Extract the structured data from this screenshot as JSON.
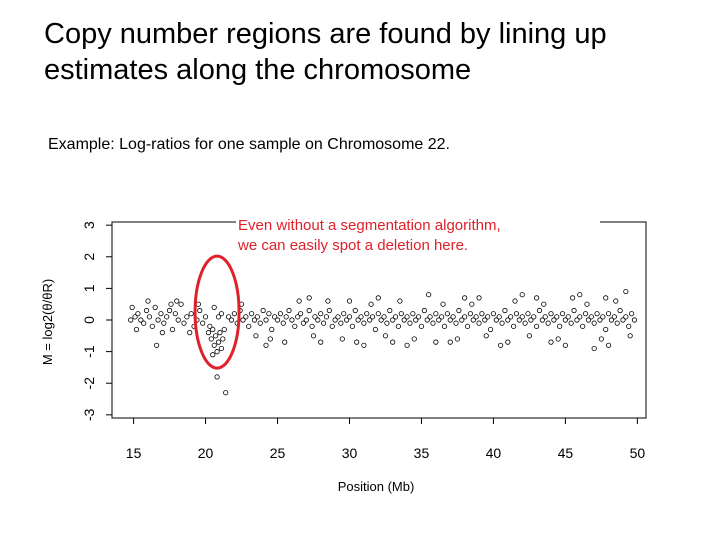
{
  "slide": {
    "title": "Copy number regions are found by lining up estimates along the chromosome",
    "subtitle": "Example: Log-ratios for one sample on Chromosome 22."
  },
  "annotation": {
    "text_line1": "Even without a segmentation algorithm,",
    "text_line2": "we can easily spot a deletion here.",
    "color": "#e0202a"
  },
  "chart_data": {
    "type": "scatter",
    "title": "",
    "xlabel": "Position (Mb)",
    "ylabel": "M = log2(θ/θR)",
    "xlim": [
      13.5,
      50.6
    ],
    "ylim": [
      -3.1,
      3.1
    ],
    "xticks": [
      15,
      20,
      25,
      30,
      35,
      40,
      45,
      50
    ],
    "yticks": [
      -3,
      -2,
      -1,
      0,
      1,
      2,
      3
    ],
    "grid": false,
    "marker": "open-circle",
    "point_color": "#000000",
    "highlight": {
      "shape": "ellipse",
      "color": "#e0202a",
      "x_center": 20.8,
      "y_center": 0.25
    },
    "points": [
      [
        14.8,
        0.0
      ],
      [
        15.1,
        0.1
      ],
      [
        15.3,
        0.2
      ],
      [
        15.5,
        0.0
      ],
      [
        15.7,
        -0.1
      ],
      [
        15.9,
        0.3
      ],
      [
        16.1,
        0.1
      ],
      [
        16.3,
        -0.2
      ],
      [
        16.5,
        0.4
      ],
      [
        16.7,
        0.0
      ],
      [
        16.9,
        0.2
      ],
      [
        17.1,
        -0.1
      ],
      [
        17.3,
        0.1
      ],
      [
        17.5,
        0.3
      ],
      [
        17.7,
        -0.3
      ],
      [
        17.9,
        0.2
      ],
      [
        18.1,
        0.0
      ],
      [
        18.3,
        0.5
      ],
      [
        18.5,
        -0.1
      ],
      [
        18.7,
        0.1
      ],
      [
        19.0,
        0.2
      ],
      [
        19.2,
        -0.2
      ],
      [
        19.4,
        0.0
      ],
      [
        19.6,
        0.3
      ],
      [
        19.8,
        -0.1
      ],
      [
        20.0,
        0.1
      ],
      [
        15.2,
        -0.3
      ],
      [
        16.0,
        0.6
      ],
      [
        17.0,
        -0.4
      ],
      [
        18.0,
        0.6
      ],
      [
        18.9,
        -0.4
      ],
      [
        19.5,
        0.5
      ],
      [
        16.6,
        -0.8
      ],
      [
        14.9,
        0.4
      ],
      [
        17.6,
        0.5
      ],
      [
        20.2,
        -0.4
      ],
      [
        20.3,
        -0.2
      ],
      [
        20.4,
        -0.6
      ],
      [
        20.5,
        -0.3
      ],
      [
        20.6,
        -0.8
      ],
      [
        20.7,
        -0.5
      ],
      [
        20.8,
        -1.0
      ],
      [
        20.9,
        -0.7
      ],
      [
        21.0,
        -0.4
      ],
      [
        21.1,
        -0.9
      ],
      [
        21.2,
        -0.6
      ],
      [
        21.3,
        -0.3
      ],
      [
        20.5,
        -1.1
      ],
      [
        20.8,
        -1.8
      ],
      [
        21.4,
        -2.3
      ],
      [
        20.6,
        0.4
      ],
      [
        20.9,
        0.1
      ],
      [
        21.1,
        0.2
      ],
      [
        21.6,
        0.1
      ],
      [
        21.8,
        0.0
      ],
      [
        22.0,
        0.2
      ],
      [
        22.2,
        -0.1
      ],
      [
        22.4,
        0.3
      ],
      [
        22.6,
        0.0
      ],
      [
        22.8,
        0.1
      ],
      [
        23.0,
        -0.2
      ],
      [
        23.2,
        0.2
      ],
      [
        23.4,
        0.0
      ],
      [
        23.6,
        0.1
      ],
      [
        23.8,
        -0.1
      ],
      [
        24.0,
        0.3
      ],
      [
        24.2,
        0.0
      ],
      [
        24.4,
        0.2
      ],
      [
        24.6,
        -0.3
      ],
      [
        24.8,
        0.1
      ],
      [
        25.0,
        0.0
      ],
      [
        25.2,
        0.2
      ],
      [
        25.4,
        -0.1
      ],
      [
        25.6,
        0.1
      ],
      [
        25.8,
        0.3
      ],
      [
        26.0,
        0.0
      ],
      [
        26.2,
        -0.2
      ],
      [
        26.4,
        0.1
      ],
      [
        26.6,
        0.2
      ],
      [
        26.8,
        -0.1
      ],
      [
        27.0,
        0.0
      ],
      [
        27.2,
        0.3
      ],
      [
        27.4,
        -0.2
      ],
      [
        27.6,
        0.1
      ],
      [
        27.8,
        0.0
      ],
      [
        28.0,
        0.2
      ],
      [
        28.2,
        -0.1
      ],
      [
        28.4,
        0.1
      ],
      [
        28.6,
        0.3
      ],
      [
        28.8,
        -0.2
      ],
      [
        29.0,
        0.0
      ],
      [
        29.2,
        0.1
      ],
      [
        29.4,
        -0.1
      ],
      [
        29.6,
        0.2
      ],
      [
        29.8,
        0.0
      ],
      [
        30.0,
        0.1
      ],
      [
        30.2,
        -0.2
      ],
      [
        30.4,
        0.3
      ],
      [
        30.6,
        0.0
      ],
      [
        30.8,
        0.1
      ],
      [
        31.0,
        -0.1
      ],
      [
        31.2,
        0.2
      ],
      [
        31.4,
        0.0
      ],
      [
        31.6,
        0.1
      ],
      [
        31.8,
        -0.3
      ],
      [
        32.0,
        0.2
      ],
      [
        32.2,
        0.0
      ],
      [
        32.4,
        0.1
      ],
      [
        32.6,
        -0.1
      ],
      [
        32.8,
        0.3
      ],
      [
        33.0,
        0.0
      ],
      [
        33.2,
        0.1
      ],
      [
        33.4,
        -0.2
      ],
      [
        33.6,
        0.2
      ],
      [
        33.8,
        0.0
      ],
      [
        34.0,
        0.1
      ],
      [
        34.2,
        -0.1
      ],
      [
        34.4,
        0.2
      ],
      [
        34.6,
        0.0
      ],
      [
        34.8,
        0.1
      ],
      [
        35.0,
        -0.2
      ],
      [
        35.2,
        0.3
      ],
      [
        35.4,
        0.0
      ],
      [
        35.6,
        0.1
      ],
      [
        35.8,
        -0.1
      ],
      [
        36.0,
        0.2
      ],
      [
        36.2,
        0.0
      ],
      [
        36.4,
        0.1
      ],
      [
        36.6,
        -0.2
      ],
      [
        36.8,
        0.2
      ],
      [
        37.0,
        0.0
      ],
      [
        37.2,
        0.1
      ],
      [
        37.4,
        -0.1
      ],
      [
        37.6,
        0.3
      ],
      [
        37.8,
        0.0
      ],
      [
        38.0,
        0.1
      ],
      [
        38.2,
        -0.2
      ],
      [
        38.4,
        0.2
      ],
      [
        38.6,
        0.0
      ],
      [
        38.8,
        0.1
      ],
      [
        39.0,
        -0.1
      ],
      [
        39.2,
        0.2
      ],
      [
        39.4,
        0.0
      ],
      [
        39.6,
        0.1
      ],
      [
        39.8,
        -0.3
      ],
      [
        40.0,
        0.2
      ],
      [
        40.2,
        0.0
      ],
      [
        40.4,
        0.1
      ],
      [
        40.6,
        -0.1
      ],
      [
        40.8,
        0.3
      ],
      [
        41.0,
        0.0
      ],
      [
        41.2,
        0.1
      ],
      [
        41.4,
        -0.2
      ],
      [
        41.6,
        0.2
      ],
      [
        41.8,
        0.0
      ],
      [
        42.0,
        0.1
      ],
      [
        42.2,
        -0.1
      ],
      [
        42.4,
        0.2
      ],
      [
        42.6,
        0.0
      ],
      [
        42.8,
        0.1
      ],
      [
        43.0,
        -0.2
      ],
      [
        43.2,
        0.3
      ],
      [
        43.4,
        0.0
      ],
      [
        43.6,
        0.1
      ],
      [
        43.8,
        -0.1
      ],
      [
        44.0,
        0.2
      ],
      [
        44.2,
        0.0
      ],
      [
        44.4,
        0.1
      ],
      [
        44.6,
        -0.2
      ],
      [
        44.8,
        0.2
      ],
      [
        45.0,
        0.0
      ],
      [
        45.2,
        0.1
      ],
      [
        45.4,
        -0.1
      ],
      [
        45.6,
        0.3
      ],
      [
        45.8,
        0.0
      ],
      [
        46.0,
        0.1
      ],
      [
        46.2,
        -0.2
      ],
      [
        46.4,
        0.2
      ],
      [
        46.6,
        0.0
      ],
      [
        46.8,
        0.1
      ],
      [
        47.0,
        -0.1
      ],
      [
        47.2,
        0.2
      ],
      [
        47.4,
        0.0
      ],
      [
        47.6,
        0.1
      ],
      [
        47.8,
        -0.3
      ],
      [
        48.0,
        0.2
      ],
      [
        48.2,
        0.0
      ],
      [
        48.4,
        0.1
      ],
      [
        48.6,
        -0.1
      ],
      [
        48.8,
        0.3
      ],
      [
        49.0,
        0.0
      ],
      [
        49.2,
        0.1
      ],
      [
        49.4,
        -0.2
      ],
      [
        49.6,
        0.2
      ],
      [
        49.8,
        0.0
      ],
      [
        22.5,
        0.5
      ],
      [
        23.5,
        -0.5
      ],
      [
        24.5,
        -0.6
      ],
      [
        26.5,
        0.6
      ],
      [
        27.5,
        -0.5
      ],
      [
        28.5,
        0.6
      ],
      [
        29.5,
        -0.6
      ],
      [
        31.5,
        0.5
      ],
      [
        32.5,
        -0.5
      ],
      [
        33.5,
        0.6
      ],
      [
        34.5,
        -0.6
      ],
      [
        36.5,
        0.5
      ],
      [
        37.5,
        -0.6
      ],
      [
        38.5,
        0.5
      ],
      [
        39.5,
        -0.5
      ],
      [
        41.5,
        0.6
      ],
      [
        42.5,
        -0.5
      ],
      [
        43.5,
        0.5
      ],
      [
        44.5,
        -0.6
      ],
      [
        46.5,
        0.5
      ],
      [
        47.5,
        -0.6
      ],
      [
        48.5,
        0.6
      ],
      [
        49.5,
        -0.5
      ],
      [
        24.2,
        -0.8
      ],
      [
        27.2,
        0.7
      ],
      [
        30.5,
        -0.7
      ],
      [
        35.5,
        0.8
      ],
      [
        40.5,
        -0.8
      ],
      [
        45.5,
        0.7
      ],
      [
        47.0,
        -0.9
      ],
      [
        25.5,
        -0.7
      ],
      [
        28.0,
        -0.7
      ],
      [
        30.0,
        0.6
      ],
      [
        32.0,
        0.7
      ],
      [
        34.0,
        -0.8
      ],
      [
        36.0,
        -0.7
      ],
      [
        38.0,
        0.7
      ],
      [
        42.0,
        0.8
      ],
      [
        44.0,
        -0.7
      ],
      [
        46.0,
        0.8
      ],
      [
        48.0,
        -0.8
      ],
      [
        49.2,
        0.9
      ],
      [
        31.0,
        -0.8
      ],
      [
        33.0,
        -0.7
      ],
      [
        37.0,
        -0.7
      ],
      [
        39.0,
        0.7
      ],
      [
        41.0,
        -0.7
      ],
      [
        43.0,
        0.7
      ],
      [
        45.0,
        -0.8
      ],
      [
        47.8,
        0.7
      ]
    ]
  }
}
